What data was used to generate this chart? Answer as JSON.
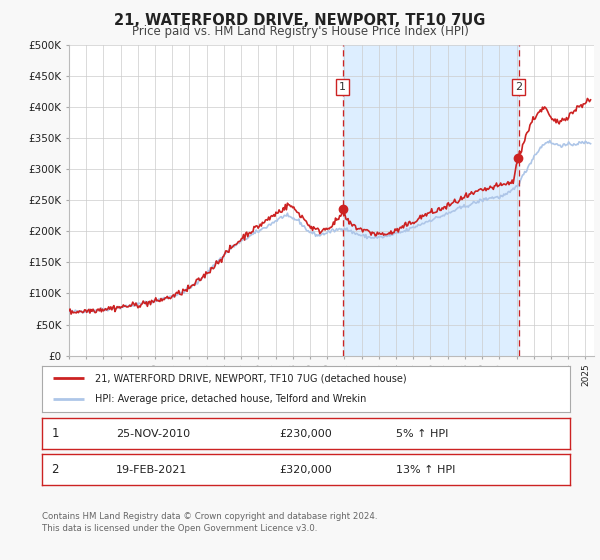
{
  "title": "21, WATERFORD DRIVE, NEWPORT, TF10 7UG",
  "subtitle": "Price paid vs. HM Land Registry's House Price Index (HPI)",
  "ylim": [
    0,
    500000
  ],
  "xlim_start": 1995.0,
  "xlim_end": 2025.5,
  "ytick_labels": [
    "£0",
    "£50K",
    "£100K",
    "£150K",
    "£200K",
    "£250K",
    "£300K",
    "£350K",
    "£400K",
    "£450K",
    "£500K"
  ],
  "ytick_values": [
    0,
    50000,
    100000,
    150000,
    200000,
    250000,
    300000,
    350000,
    400000,
    450000,
    500000
  ],
  "hpi_color": "#aec6e8",
  "price_color": "#cc2222",
  "bg_color": "#f8f8f8",
  "plot_bg": "#ffffff",
  "vline_color": "#cc2222",
  "shade_color": "#ddeeff",
  "legend_label_price": "21, WATERFORD DRIVE, NEWPORT, TF10 7UG (detached house)",
  "legend_label_hpi": "HPI: Average price, detached house, Telford and Wrekin",
  "event1_date": 2010.9,
  "event1_label": "1",
  "event1_price": 230000,
  "event2_date": 2021.12,
  "event2_label": "2",
  "event2_price": 320000,
  "footer1": "Contains HM Land Registry data © Crown copyright and database right 2024.",
  "footer2": "This data is licensed under the Open Government Licence v3.0."
}
